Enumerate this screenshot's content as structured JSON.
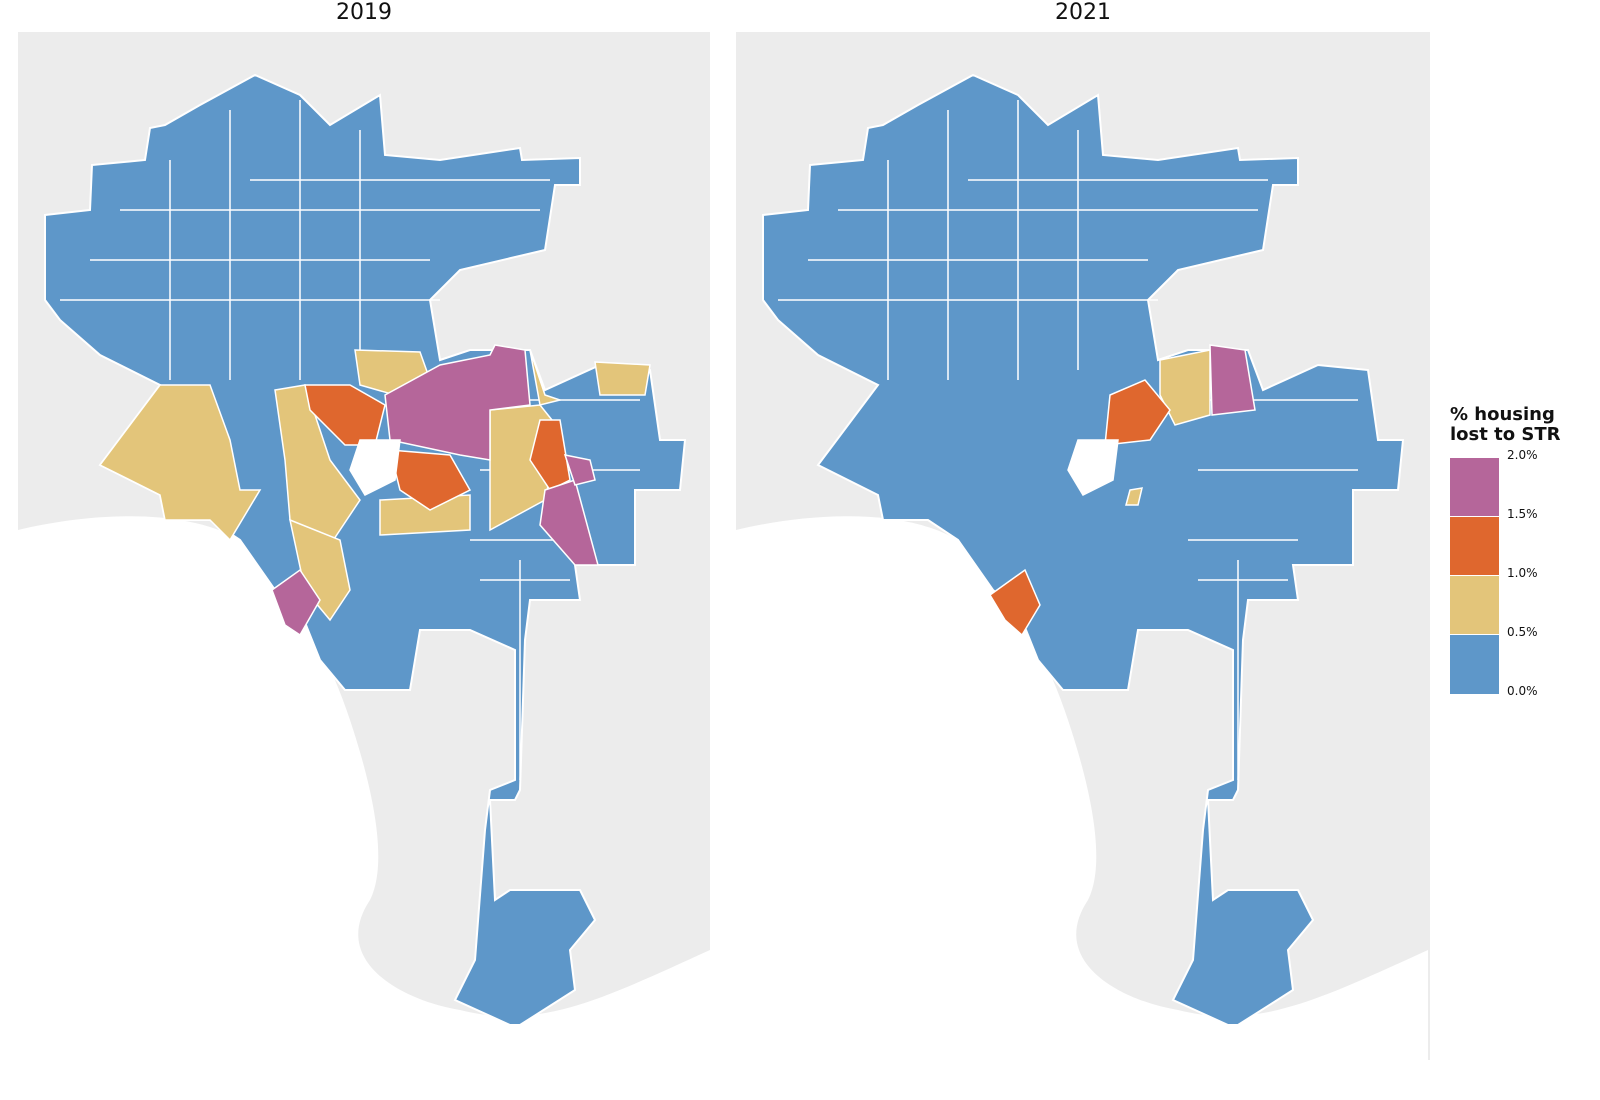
{
  "chart_data": {
    "type": "choropleth",
    "panels": [
      {
        "title": "2019",
        "class_distribution_visible": {
          "0.0-0.5%": "majority (north valley, south, harbor)",
          "0.5-1.0%": "several westside/central areas",
          "1.0-1.5%": "several central areas",
          "1.5-2.0%": "several central/east areas"
        }
      },
      {
        "title": "2021",
        "class_distribution_visible": {
          "0.0-0.5%": "almost all",
          "0.5-1.0%": "few",
          "1.0-1.5%": "two areas",
          "1.5-2.0%": "one area"
        }
      }
    ],
    "legend": {
      "title_line1": "% housing",
      "title_line2": "lost to STR",
      "breaks": [
        "2.0%",
        "1.5%",
        "1.0%",
        "0.5%",
        "0.0%"
      ],
      "classes": [
        {
          "range": [
            1.5,
            2.0
          ],
          "color": "#b5669a"
        },
        {
          "range": [
            1.0,
            1.5
          ],
          "color": "#df672e"
        },
        {
          "range": [
            0.5,
            1.0
          ],
          "color": "#e3c57a"
        },
        {
          "range": [
            0.0,
            0.5
          ],
          "color": "#5e97c9"
        }
      ]
    },
    "background_color": "#ececec"
  }
}
